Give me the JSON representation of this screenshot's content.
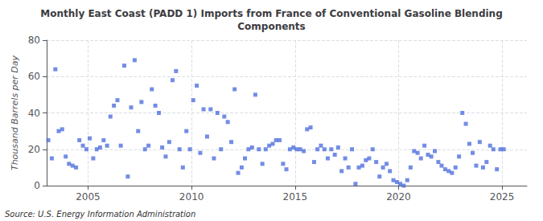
{
  "chart_data": {
    "type": "scatter",
    "title": "Monthly East Coast (PADD 1) Imports from France of Conventional Gasoline Blending\nComponents",
    "ylabel": "Thousand Barrels per Day",
    "annotations": [
      "Source: U.S. Energy Information Administration"
    ],
    "marker": "square",
    "grid": true,
    "xlim": [
      2003.0,
      2026.2
    ],
    "xticks": [
      2005,
      2010,
      2015,
      2020,
      2025
    ],
    "ylim": [
      0,
      80
    ],
    "yticks": [
      0,
      20,
      40,
      60,
      80
    ],
    "x": [
      2003.08,
      2003.25,
      2003.42,
      2003.58,
      2003.75,
      2003.92,
      2004.08,
      2004.25,
      2004.42,
      2004.58,
      2004.75,
      2004.92,
      2005.08,
      2005.25,
      2005.42,
      2005.58,
      2005.75,
      2005.92,
      2006.08,
      2006.25,
      2006.42,
      2006.58,
      2006.75,
      2006.92,
      2007.08,
      2007.25,
      2007.42,
      2007.58,
      2007.75,
      2007.92,
      2008.08,
      2008.25,
      2008.42,
      2008.58,
      2008.75,
      2008.92,
      2009.08,
      2009.25,
      2009.42,
      2009.58,
      2009.75,
      2009.92,
      2010.08,
      2010.25,
      2010.42,
      2010.58,
      2010.75,
      2010.92,
      2011.08,
      2011.25,
      2011.42,
      2011.58,
      2011.75,
      2011.92,
      2012.08,
      2012.25,
      2012.42,
      2012.58,
      2012.75,
      2012.92,
      2013.08,
      2013.25,
      2013.42,
      2013.58,
      2013.75,
      2013.92,
      2014.08,
      2014.25,
      2014.42,
      2014.58,
      2014.75,
      2014.92,
      2015.08,
      2015.25,
      2015.42,
      2015.58,
      2015.75,
      2015.92,
      2016.08,
      2016.25,
      2016.42,
      2016.58,
      2016.75,
      2016.92,
      2017.08,
      2017.25,
      2017.42,
      2017.58,
      2017.75,
      2017.92,
      2018.08,
      2018.25,
      2018.42,
      2018.58,
      2018.75,
      2018.92,
      2019.08,
      2019.25,
      2019.42,
      2019.58,
      2019.75,
      2019.92,
      2020.08,
      2020.25,
      2020.42,
      2020.58,
      2020.75,
      2020.92,
      2021.08,
      2021.25,
      2021.42,
      2021.58,
      2021.75,
      2021.92,
      2022.08,
      2022.25,
      2022.42,
      2022.58,
      2022.75,
      2022.92,
      2023.08,
      2023.25,
      2023.42,
      2023.58,
      2023.75,
      2023.92,
      2024.08,
      2024.25,
      2024.42,
      2024.58,
      2024.75,
      2024.92,
      2025.08
    ],
    "values": [
      25,
      15,
      64,
      30,
      31,
      16,
      12,
      11,
      10,
      25,
      22,
      20,
      26,
      15,
      20,
      21,
      25,
      22,
      38,
      44,
      47,
      22,
      66,
      5,
      43,
      69,
      30,
      46,
      20,
      22,
      53,
      44,
      40,
      21,
      16,
      24,
      58,
      63,
      20,
      10,
      30,
      20,
      47,
      55,
      18,
      42,
      27,
      42,
      15,
      40,
      20,
      38,
      35,
      24,
      53,
      7,
      10,
      15,
      20,
      21,
      50,
      20,
      12,
      20,
      22,
      23,
      25,
      25,
      12,
      9,
      20,
      21,
      20,
      20,
      19,
      31,
      32,
      13,
      20,
      22,
      20,
      15,
      20,
      17,
      21,
      8,
      15,
      10,
      20,
      1,
      10,
      11,
      14,
      15,
      20,
      13,
      5,
      10,
      12,
      8,
      3,
      2,
      1,
      0,
      3,
      10,
      19,
      18,
      15,
      22,
      17,
      16,
      19,
      13,
      11,
      9,
      8,
      7,
      10,
      16,
      40,
      34,
      23,
      18,
      11,
      24,
      10,
      13,
      22,
      20,
      9,
      20,
      20
    ]
  }
}
